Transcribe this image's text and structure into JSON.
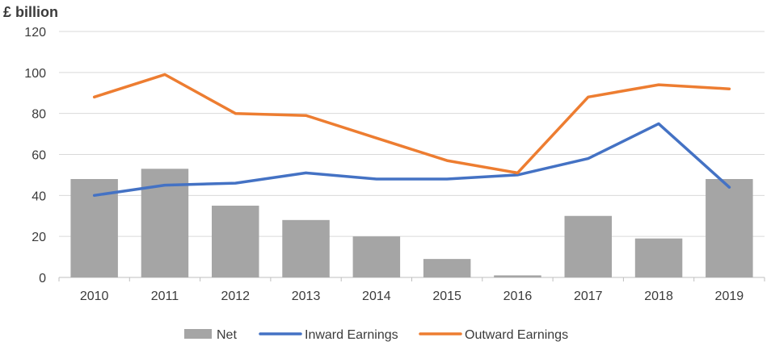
{
  "chart_data": {
    "type": "bar+line",
    "title": "",
    "unit_label": "£ billion",
    "xlabel": "",
    "ylabel": "",
    "categories": [
      "2010",
      "2011",
      "2012",
      "2013",
      "2014",
      "2015",
      "2016",
      "2017",
      "2018",
      "2019"
    ],
    "ylim": [
      0,
      120
    ],
    "yticks": [
      0,
      20,
      40,
      60,
      80,
      100,
      120
    ],
    "grid": true,
    "legend_position": "bottom",
    "series": [
      {
        "name": "Net",
        "kind": "bar",
        "color": "#a5a5a5",
        "values": [
          48,
          53,
          35,
          28,
          20,
          9,
          1,
          30,
          19,
          48
        ]
      },
      {
        "name": "Inward Earnings",
        "kind": "line",
        "color": "#4472c4",
        "values": [
          40,
          45,
          46,
          51,
          48,
          48,
          50,
          58,
          75,
          44
        ]
      },
      {
        "name": "Outward Earnings",
        "kind": "line",
        "color": "#ed7d31",
        "values": [
          88,
          99,
          80,
          79,
          68,
          57,
          51,
          88,
          94,
          92
        ]
      }
    ]
  }
}
